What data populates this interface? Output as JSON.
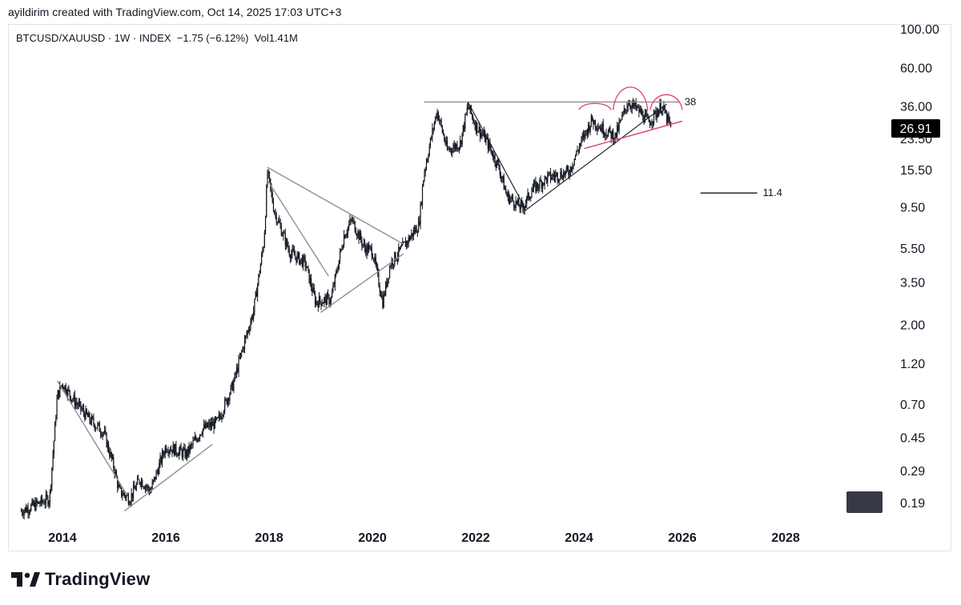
{
  "header": {
    "credit": "ayildirim created with TradingView.com, Oct 14, 2025 17:03 UTC+3"
  },
  "symbol": {
    "line": "BTCUSD/XAUUSD · 1W · INDEX  −1.75 (−6.12%)  Vol1.41M"
  },
  "footer": {
    "logo_text": "TradingView"
  },
  "colors": {
    "candle": "#131722",
    "trendline_gray": "#8f8f8f",
    "trendline_black": "#131722",
    "pattern_pink": "#e0406a",
    "last_price_bg": "#000000",
    "last_price_fg": "#ffffff",
    "logo": "#131722"
  },
  "chart_data": {
    "type": "candlestick",
    "scale": "log",
    "y_ticks": [
      "100.00",
      "60.00",
      "36.00",
      "23.50",
      "15.50",
      "9.50",
      "5.50",
      "3.50",
      "2.00",
      "1.20",
      "0.70",
      "0.45",
      "0.29",
      "0.19"
    ],
    "y_tick_values": [
      100,
      60,
      36,
      23.5,
      15.5,
      9.5,
      5.5,
      3.5,
      2,
      1.2,
      0.7,
      0.45,
      0.29,
      0.19
    ],
    "x_ticks": [
      "2014",
      "2016",
      "2018",
      "2020",
      "2022",
      "2024",
      "2026",
      "2028"
    ],
    "x_tick_values": [
      2014,
      2016,
      2018,
      2020,
      2022,
      2024,
      2026,
      2028
    ],
    "last_price": "26.91",
    "last_price_value": 26.91,
    "price_path": [
      [
        2013.2,
        0.17
      ],
      [
        2013.75,
        0.2
      ],
      [
        2013.9,
        0.78
      ],
      [
        2014.0,
        0.92
      ],
      [
        2014.2,
        0.75
      ],
      [
        2014.5,
        0.58
      ],
      [
        2014.8,
        0.48
      ],
      [
        2015.0,
        0.3
      ],
      [
        2015.1,
        0.22
      ],
      [
        2015.3,
        0.2
      ],
      [
        2015.5,
        0.26
      ],
      [
        2015.7,
        0.22
      ],
      [
        2016.0,
        0.4
      ],
      [
        2016.4,
        0.36
      ],
      [
        2016.7,
        0.5
      ],
      [
        2017.0,
        0.55
      ],
      [
        2017.3,
        0.9
      ],
      [
        2017.5,
        1.5
      ],
      [
        2017.7,
        2.4
      ],
      [
        2017.9,
        6.0
      ],
      [
        2017.97,
        15.0
      ],
      [
        2018.1,
        9.0
      ],
      [
        2018.4,
        5.2
      ],
      [
        2018.7,
        4.5
      ],
      [
        2018.9,
        2.7
      ],
      [
        2019.2,
        2.8
      ],
      [
        2019.45,
        6.5
      ],
      [
        2019.6,
        8.0
      ],
      [
        2019.85,
        5.5
      ],
      [
        2020.0,
        5.3
      ],
      [
        2020.2,
        2.7
      ],
      [
        2020.35,
        4.5
      ],
      [
        2020.6,
        5.6
      ],
      [
        2020.9,
        7.5
      ],
      [
        2021.0,
        15.0
      ],
      [
        2021.25,
        34.0
      ],
      [
        2021.45,
        20.0
      ],
      [
        2021.7,
        22.0
      ],
      [
        2021.85,
        36.0
      ],
      [
        2022.0,
        28.0
      ],
      [
        2022.2,
        23.0
      ],
      [
        2022.45,
        16.0
      ],
      [
        2022.6,
        11.0
      ],
      [
        2022.9,
        9.3
      ],
      [
        2023.1,
        12.0
      ],
      [
        2023.4,
        14.0
      ],
      [
        2023.8,
        15.0
      ],
      [
        2024.0,
        21.0
      ],
      [
        2024.25,
        30.0
      ],
      [
        2024.5,
        26.0
      ],
      [
        2024.7,
        24.0
      ],
      [
        2024.95,
        38.0
      ],
      [
        2025.15,
        34.0
      ],
      [
        2025.35,
        29.0
      ],
      [
        2025.6,
        36.0
      ],
      [
        2025.78,
        26.9
      ]
    ],
    "annotations": [
      {
        "label": "38",
        "value": 38
      },
      {
        "label": "11.4",
        "value": 11.4
      }
    ],
    "trendlines": [
      {
        "style": "gray",
        "from": [
          2013.9,
          0.95
        ],
        "to": [
          2015.25,
          0.21
        ]
      },
      {
        "style": "gray",
        "from": [
          2015.2,
          0.17
        ],
        "to": [
          2016.9,
          0.41
        ]
      },
      {
        "style": "gray",
        "from": [
          2017.97,
          16.0
        ],
        "to": [
          2020.6,
          5.8
        ]
      },
      {
        "style": "gray",
        "from": [
          2017.97,
          13.5
        ],
        "to": [
          2019.15,
          3.8
        ]
      },
      {
        "style": "gray",
        "from": [
          2019.0,
          2.35
        ],
        "to": [
          2020.6,
          5.1
        ]
      },
      {
        "style": "gray",
        "from": [
          2021.0,
          38.0
        ],
        "to": [
          2025.95,
          38.0
        ]
      },
      {
        "style": "black",
        "from": [
          2021.85,
          38.0
        ],
        "to": [
          2022.95,
          9.4
        ]
      },
      {
        "style": "black",
        "from": [
          2022.95,
          9.0
        ],
        "to": [
          2025.7,
          37.0
        ]
      },
      {
        "style": "pink",
        "from": [
          2024.1,
          20.5
        ],
        "to": [
          2026.0,
          29.5
        ]
      }
    ],
    "patterns": [
      {
        "name": "left-shoulder",
        "from": 2024.0,
        "to": 2024.62,
        "peak": 36.0
      },
      {
        "name": "head",
        "from": 2024.66,
        "to": 2025.33,
        "peak": 48.0
      },
      {
        "name": "right-shoulder",
        "from": 2025.38,
        "to": 2026.0,
        "peak": 42.0
      }
    ]
  }
}
